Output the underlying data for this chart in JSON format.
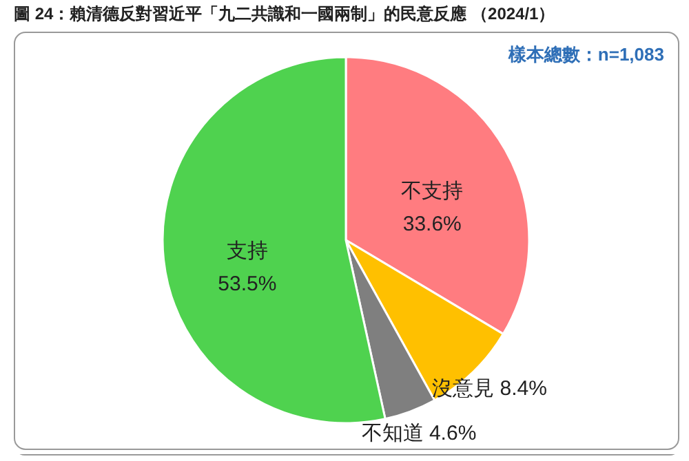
{
  "chart_data": {
    "type": "pie",
    "title": "圖 24：賴清德反對習近平「九二共識和一國兩制」的民意反應 （2024/1）",
    "categories": [
      "不支持",
      "沒意見",
      "不知道",
      "支持"
    ],
    "values": [
      33.6,
      8.4,
      4.6,
      53.5
    ],
    "colors": [
      "#ff7c80",
      "#ffc000",
      "#7f7f7f",
      "#4fd24f"
    ],
    "value_labels": [
      "33.6%",
      "8.4%",
      "4.6%",
      "53.5%"
    ],
    "annotations": [
      "樣本總數：n=1,083"
    ],
    "legend": false
  }
}
